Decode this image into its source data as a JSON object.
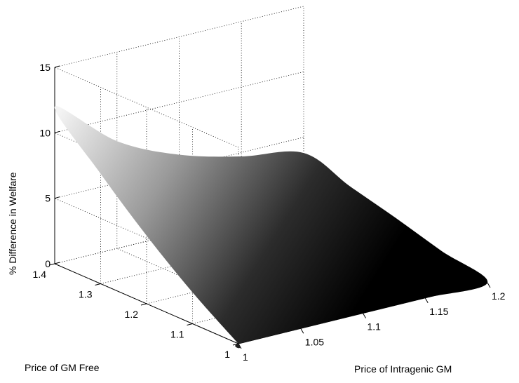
{
  "chart_data": {
    "type": "surface",
    "title": "",
    "xlabel": "Price of Intragenic GM",
    "ylabel": "Price of GM Free",
    "zlabel": "% Difference in Welfare",
    "x_range": [
      1,
      1.2
    ],
    "y_range": [
      1,
      1.4
    ],
    "zlim": [
      0,
      15
    ],
    "x_ticks": [
      1,
      1.05,
      1.1,
      1.15,
      1.2
    ],
    "x_tick_labels": [
      "1",
      "1.05",
      "1.1",
      "1.15",
      "1.2"
    ],
    "y_ticks": [
      1,
      1.1,
      1.2,
      1.3,
      1.4
    ],
    "y_tick_labels": [
      "1",
      "1.1",
      "1.2",
      "1.3",
      "1.4"
    ],
    "z_ticks": [
      0,
      5,
      10,
      15
    ],
    "z_tick_labels": [
      "0",
      "5",
      "10",
      "15"
    ],
    "grid": true,
    "colormap": "gray",
    "surface_corners": [
      {
        "x": 1,
        "y": 1,
        "z": 0
      },
      {
        "x": 1.2,
        "y": 1,
        "z": 0
      },
      {
        "x": 1,
        "y": 1.4,
        "z": 12
      },
      {
        "x": 1.2,
        "y": 1.4,
        "z": 3.8
      }
    ],
    "surface_edges": {
      "x_at_1": {
        "y": [
          1,
          1.1,
          1.2,
          1.3,
          1.4
        ],
        "z": [
          0,
          2.4,
          5.2,
          8.4,
          12
        ]
      },
      "x_at_1_2": {
        "y": [
          1,
          1.1,
          1.2,
          1.3,
          1.4
        ],
        "z": [
          0,
          0.9,
          1.9,
          2.8,
          3.8
        ]
      },
      "y_at_1_4": {
        "x": [
          1,
          1.05,
          1.1,
          1.15,
          1.2
        ],
        "z": [
          12,
          8.2,
          6.0,
          4.7,
          3.8
        ]
      },
      "y_at_1": {
        "x": [
          1,
          1.05,
          1.1,
          1.15,
          1.2
        ],
        "z": [
          0,
          0,
          0,
          0,
          0
        ]
      }
    }
  }
}
